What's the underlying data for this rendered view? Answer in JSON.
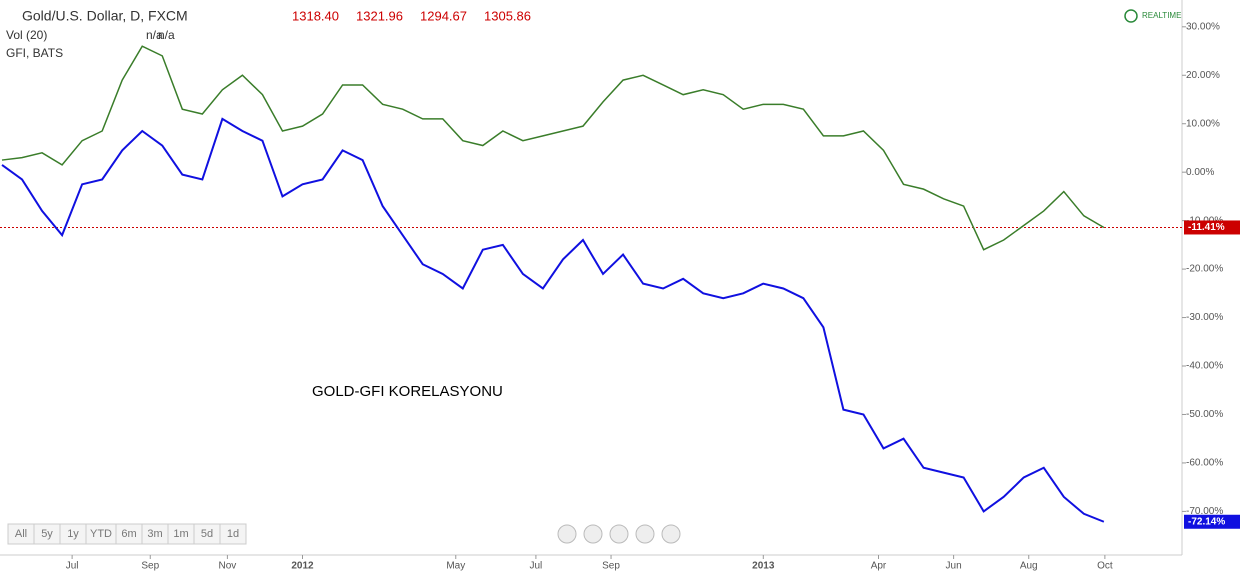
{
  "header": {
    "symbol": "Gold/U.S. Dollar, D, FXCM",
    "ohlc": [
      "1318.40",
      "1321.96",
      "1294.67",
      "1305.86"
    ],
    "volume": "Vol (20)",
    "volume_values": [
      "n/a",
      "n/a"
    ],
    "compare": "GFI, BATS",
    "status": "REALTIME"
  },
  "range_buttons": [
    "All",
    "5y",
    "1y",
    "YTD",
    "6m",
    "3m",
    "1m",
    "5d",
    "1d"
  ],
  "chart_data": {
    "type": "line",
    "annotation": "GOLD-GFI KORELASYONU",
    "x": [
      0,
      1,
      2,
      3,
      4,
      5,
      6,
      7,
      8,
      9,
      10,
      11,
      12,
      13,
      14,
      15,
      16,
      17,
      18,
      19,
      20,
      21,
      22,
      23,
      24,
      25,
      26,
      27,
      28,
      29,
      30,
      31,
      32,
      33,
      34,
      35,
      36,
      37,
      38,
      39,
      40,
      41,
      42,
      43,
      44,
      45,
      46,
      47,
      48,
      49,
      50,
      51,
      52,
      53,
      54,
      55
    ],
    "series": [
      {
        "name": "Gold/U.S. Dollar",
        "color": "#3a7d2a",
        "last_value_label": "-11.41%",
        "values": [
          2.5,
          3,
          4,
          1.5,
          6.5,
          8.5,
          19,
          26,
          24,
          13,
          12,
          17,
          20,
          16,
          8.5,
          9.5,
          12,
          18,
          18,
          14,
          13,
          11,
          11,
          6.5,
          5.5,
          8.5,
          6.5,
          7.5,
          8.5,
          9.5,
          14.5,
          19,
          20,
          18,
          16,
          17,
          16,
          13,
          14,
          14,
          13,
          7.5,
          7.5,
          8.5,
          4.5,
          -2.5,
          -3.5,
          -5.5,
          -7,
          -16,
          -14,
          -11,
          -8,
          -4,
          -9,
          -11.41
        ]
      },
      {
        "name": "GFI",
        "color": "#1010e0",
        "last_value_label": "-72.14%",
        "values": [
          1.5,
          -1.5,
          -8,
          -13,
          -2.5,
          -1.5,
          4.5,
          8.5,
          5.5,
          -0.5,
          -1.5,
          11,
          8.5,
          6.5,
          -5,
          -2.5,
          -1.5,
          4.5,
          2.5,
          -7,
          -13,
          -19,
          -21,
          -24,
          -16,
          -15,
          -21,
          -24,
          -18,
          -14,
          -21,
          -17,
          -23,
          -24,
          -22,
          -25,
          -26,
          -25,
          -23,
          -24,
          -26,
          -32,
          -49,
          -50,
          -57,
          -55,
          -61,
          -62,
          -63,
          -70,
          -67,
          -63,
          -61,
          -67,
          -70.5,
          -72.14
        ]
      }
    ],
    "xlim": [
      -0.1,
      58.9
    ],
    "xticks": [
      {
        "value": 3.5,
        "label": "Jul"
      },
      {
        "value": 7.4,
        "label": "Sep"
      },
      {
        "value": 11.25,
        "label": "Nov"
      },
      {
        "value": 15,
        "label": "2012"
      },
      {
        "value": 22.65,
        "label": "May"
      },
      {
        "value": 26.65,
        "label": "Jul"
      },
      {
        "value": 30.4,
        "label": "Sep"
      },
      {
        "value": 38,
        "label": "2013"
      },
      {
        "value": 43.75,
        "label": "Apr"
      },
      {
        "value": 47.5,
        "label": "Jun"
      },
      {
        "value": 51.25,
        "label": "Aug"
      },
      {
        "value": 55.05,
        "label": "Oct"
      }
    ],
    "ylim": [
      -79,
      34.5
    ],
    "yticks": [
      {
        "value": 30,
        "label": "30.00%"
      },
      {
        "value": 20,
        "label": "20.00%"
      },
      {
        "value": 10,
        "label": "10.00%"
      },
      {
        "value": 0,
        "label": "0.00%"
      },
      {
        "value": -10,
        "label": "-10.00%"
      },
      {
        "value": -20,
        "label": "-20.00%"
      },
      {
        "value": -30,
        "label": "-30.00%"
      },
      {
        "value": -40,
        "label": "-40.00%"
      },
      {
        "value": -50,
        "label": "-50.00%"
      },
      {
        "value": -60,
        "label": "-60.00%"
      },
      {
        "value": -70,
        "label": "-70.00%"
      }
    ]
  }
}
